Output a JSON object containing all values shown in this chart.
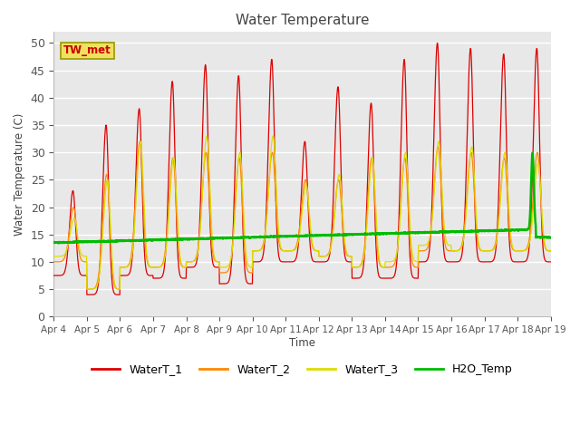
{
  "title": "Water Temperature",
  "ylabel": "Water Temperature (C)",
  "xlabel": "Time",
  "background_color": "#e8e8e8",
  "fig_color": "#ffffff",
  "grid_color": "#ffffff",
  "tw_met_label": "TW_met",
  "tw_met_bg": "#f0e060",
  "tw_met_fg": "#cc0000",
  "legend_entries": [
    "WaterT_1",
    "WaterT_2",
    "WaterT_3",
    "H2O_Temp"
  ],
  "legend_colors": [
    "#dd0000",
    "#ff8800",
    "#dddd00",
    "#00bb00"
  ],
  "xtick_labels": [
    "Apr 4",
    "Apr 5",
    "Apr 6",
    "Apr 7",
    "Apr 8",
    "Apr 9",
    "Apr 10",
    "Apr 11",
    "Apr 12",
    "Apr 13",
    "Apr 14",
    "Apr 15",
    "Apr 16",
    "Apr 17",
    "Apr 18",
    "Apr 19"
  ],
  "ytick_values": [
    0,
    5,
    10,
    15,
    20,
    25,
    30,
    35,
    40,
    45,
    50
  ]
}
